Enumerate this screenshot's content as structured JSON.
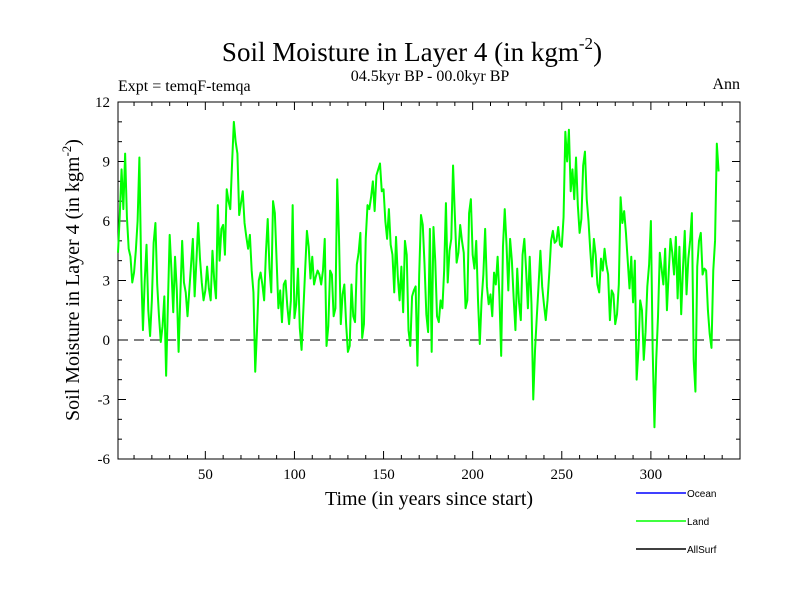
{
  "chart_data": {
    "type": "line",
    "title": "Soil Moisture in Layer 4 (in kgm",
    "title_sup": "-2",
    "title_close": ")",
    "subtitle_left": "Expt = temqF-temqa",
    "subtitle_center": "04.5kyr BP - 00.0kyr BP",
    "subtitle_right": "Ann",
    "xlabel": "Time (in years since start)",
    "ylabel": "Soil Moisture in Layer 4 (in kgm",
    "ylabel_sup": "-2",
    "ylabel_close": ")",
    "xlim": [
      1,
      350
    ],
    "ylim": [
      -6,
      12
    ],
    "xticks": [
      50,
      100,
      150,
      200,
      250,
      300
    ],
    "yticks": [
      -6,
      -3,
      0,
      3,
      6,
      9,
      12
    ],
    "zero_line": 0,
    "legend": [
      {
        "name": "Ocean",
        "color": "#0000ff"
      },
      {
        "name": "Land",
        "color": "#00ff00"
      },
      {
        "name": "AllSurf",
        "color": "#000000"
      }
    ],
    "series": [
      {
        "name": "Land",
        "color": "#00ff00",
        "x_start": 1,
        "x_step": 1,
        "values": [
          4.4,
          6.3,
          8.6,
          6.6,
          9.4,
          6.2,
          4.6,
          4.2,
          2.9,
          3.4,
          4.5,
          6.0,
          9.2,
          3.6,
          0.5,
          3.0,
          4.8,
          1.5,
          0.2,
          2.0,
          4.9,
          5.9,
          2.8,
          1.2,
          -0.1,
          0.7,
          2.2,
          -1.8,
          1.8,
          5.3,
          3.5,
          1.4,
          4.2,
          2.5,
          -0.6,
          2.3,
          5.0,
          2.9,
          2.4,
          1.2,
          2.5,
          3.8,
          5.1,
          2.2,
          4.0,
          5.9,
          4.1,
          2.9,
          2.0,
          2.5,
          3.7,
          2.6,
          2.0,
          4.5,
          3.0,
          2.1,
          6.8,
          4.0,
          5.6,
          5.8,
          4.3,
          7.6,
          7.0,
          6.6,
          8.9,
          11.0,
          10.0,
          9.4,
          6.3,
          6.9,
          7.5,
          5.9,
          5.2,
          4.6,
          5.3,
          3.5,
          2.4,
          -1.6,
          0.5,
          3.0,
          3.4,
          2.8,
          2.0,
          4.4,
          6.1,
          3.6,
          2.4,
          7.0,
          6.4,
          4.0,
          1.6,
          2.5,
          0.9,
          2.8,
          3.0,
          1.7,
          0.8,
          2.0,
          6.8,
          1.1,
          1.8,
          3.6,
          0.6,
          -0.5,
          1.5,
          3.5,
          5.5,
          4.7,
          3.1,
          4.2,
          2.8,
          3.2,
          3.5,
          3.3,
          2.8,
          3.5,
          5.1,
          -0.3,
          0.7,
          3.5,
          3.3,
          1.2,
          1.6,
          8.1,
          5.2,
          0.8,
          2.3,
          2.8,
          0.8,
          -0.6,
          -0.3,
          2.8,
          1.2,
          0.9,
          3.8,
          4.4,
          5.4,
          0.1,
          0.8,
          5.1,
          6.8,
          6.6,
          7.2,
          8.0,
          6.5,
          8.3,
          8.6,
          8.9,
          7.5,
          7.6,
          6.0,
          5.1,
          6.6,
          4.8,
          4.3,
          2.4,
          5.2,
          3.2,
          2.0,
          3.7,
          1.4,
          5.0,
          4.3,
          0.5,
          -0.3,
          2.2,
          2.5,
          2.7,
          -1.3,
          3.3,
          6.3,
          5.8,
          3.8,
          1.3,
          0.4,
          5.6,
          -0.6,
          5.7,
          4.0,
          1.2,
          0.9,
          2.0,
          1.6,
          3.5,
          6.9,
          2.9,
          4.5,
          5.1,
          8.8,
          6.3,
          3.9,
          4.4,
          5.8,
          5.0,
          4.4,
          1.6,
          2.0,
          6.4,
          7.1,
          4.3,
          3.6,
          5.0,
          2.0,
          -0.2,
          2.0,
          3.3,
          5.6,
          2.7,
          1.8,
          2.3,
          1.2,
          3.4,
          2.8,
          4.2,
          2.2,
          -0.8,
          4.7,
          6.6,
          4.8,
          2.5,
          5.1,
          4.0,
          2.1,
          0.5,
          3.6,
          1.9,
          1.0,
          4.3,
          5.1,
          3.5,
          1.6,
          4.2,
          1.8,
          -3.0,
          -0.5,
          1.2,
          2.8,
          4.5,
          2.7,
          1.8,
          1.0,
          2.0,
          3.4,
          5.0,
          5.5,
          4.9,
          5.0,
          5.7,
          4.8,
          4.7,
          6.2,
          10.5,
          9.0,
          10.6,
          7.5,
          8.6,
          7.1,
          9.2,
          6.8,
          5.4,
          6.1,
          8.8,
          9.5,
          7.1,
          6.0,
          4.5,
          3.2,
          5.1,
          4.3,
          2.8,
          2.4,
          4.1,
          3.5,
          4.6,
          3.8,
          3.3,
          1.0,
          2.5,
          2.3,
          0.8,
          1.3,
          2.8,
          7.2,
          5.9,
          6.5,
          5.4,
          4.0,
          2.6,
          4.2,
          1.9,
          4.0,
          -2.0,
          -0.5,
          2.0,
          1.5,
          -1.0,
          0.4,
          2.7,
          3.8,
          6.0,
          -0.5,
          -4.4,
          -1.0,
          1.2,
          4.4,
          3.6,
          2.8,
          4.6,
          1.5,
          3.4,
          5.1,
          4.4,
          3.3,
          5.2,
          2.1,
          4.7,
          1.3,
          3.6,
          5.5,
          2.3,
          4.1,
          5.0,
          6.4,
          -1.0,
          -2.6,
          3.7,
          5.0,
          5.4,
          3.3,
          3.6,
          3.5,
          1.5,
          0.3,
          -0.4,
          3.5,
          5.0,
          9.9,
          8.5
        ]
      }
    ]
  }
}
